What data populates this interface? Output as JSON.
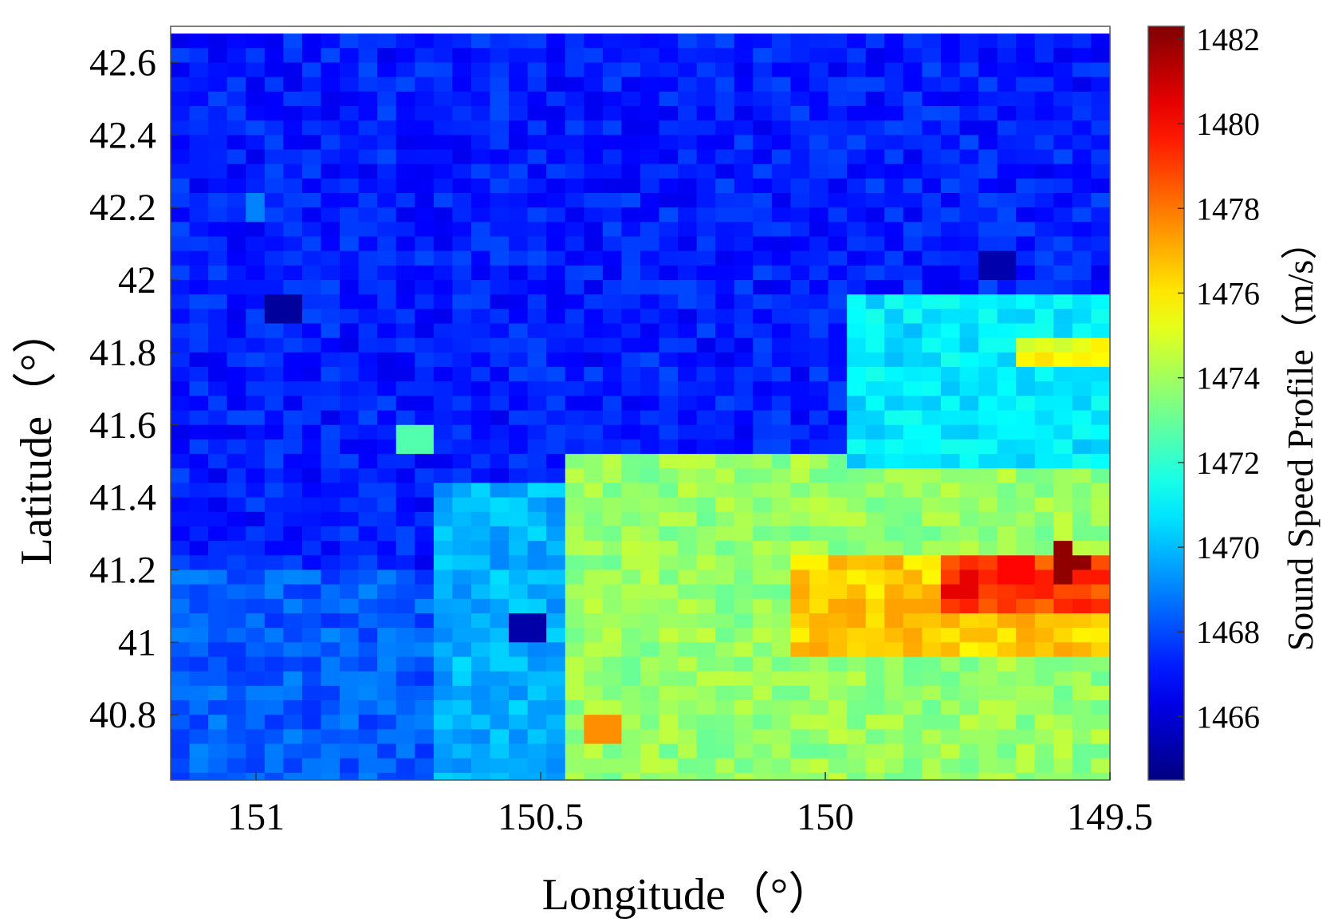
{
  "chart_data": {
    "type": "heatmap",
    "title": "",
    "xlabel": "Longitude（°）",
    "ylabel": "Latitude（°）",
    "colorbar_label": "Sound Speed Profile（m/s）",
    "x_axis_reversed": true,
    "xlim": [
      151.15,
      149.5
    ],
    "ylim": [
      40.62,
      42.7
    ],
    "clim": [
      1464.5,
      1482.3
    ],
    "x_ticks": [
      151,
      150.5,
      150,
      149.5
    ],
    "x_tick_labels": [
      "151",
      "150.5",
      "150",
      "149.5"
    ],
    "y_ticks": [
      40.8,
      41,
      41.2,
      41.4,
      41.6,
      41.8,
      42,
      42.2,
      42.4,
      42.6
    ],
    "y_tick_labels": [
      "40.8",
      "41",
      "41.2",
      "41.4",
      "41.6",
      "41.8",
      "42",
      "42.2",
      "42.4",
      "42.6"
    ],
    "colorbar_ticks": [
      1466,
      1468,
      1470,
      1472,
      1474,
      1476,
      1478,
      1480,
      1482
    ],
    "colorbar_tick_labels": [
      "1466",
      "1468",
      "1470",
      "1472",
      "1474",
      "1476",
      "1478",
      "1480",
      "1482"
    ],
    "colormap": "jet",
    "grid": {
      "rows": 52,
      "cols": 50,
      "lon_start": 151.15,
      "lon_step": -0.033,
      "lat_start": 42.68,
      "lat_step": -0.04,
      "cells_note": "Values are estimated from the colormap; each cell's center is given by lon_start + col*lon_step, lat_start + row*lat_step."
    },
    "regions": [
      {
        "lat_min": 41.6,
        "lat_max": 42.7,
        "lon_east": 149.5,
        "lon_west": 151.15,
        "value": 1467.2
      },
      {
        "lat_min": 40.62,
        "lat_max": 41.2,
        "lon_east": 150.7,
        "lon_west": 151.15,
        "value": 1468.3
      },
      {
        "lat_min": 40.62,
        "lat_max": 41.45,
        "lon_east": 150.45,
        "lon_west": 150.7,
        "value": 1469.8
      },
      {
        "lat_min": 40.62,
        "lat_max": 41.5,
        "lon_east": 149.5,
        "lon_west": 150.45,
        "value": 1473.8
      },
      {
        "lat_min": 40.95,
        "lat_max": 41.25,
        "lon_east": 149.5,
        "lon_west": 150.05,
        "value": 1476.5
      },
      {
        "lat_min": 41.1,
        "lat_max": 41.25,
        "lon_east": 149.5,
        "lon_west": 149.8,
        "value": 1479.0
      },
      {
        "lat_min": 41.5,
        "lat_max": 41.95,
        "lon_east": 149.5,
        "lon_west": 149.95,
        "value": 1470.8
      },
      {
        "lat_min": 41.75,
        "lat_max": 41.85,
        "lon_east": 149.5,
        "lon_west": 149.65,
        "value": 1475.5
      }
    ],
    "hotspots": [
      {
        "lon": 149.57,
        "lat": 41.22,
        "value": 1482.0
      },
      {
        "lon": 149.75,
        "lat": 41.15,
        "value": 1480.5
      },
      {
        "lon": 149.67,
        "lat": 41.21,
        "value": 1480.0
      },
      {
        "lon": 150.95,
        "lat": 41.92,
        "value": 1465.0
      },
      {
        "lon": 150.52,
        "lat": 41.04,
        "value": 1465.2
      },
      {
        "lon": 149.7,
        "lat": 42.03,
        "value": 1465.3
      },
      {
        "lon": 150.4,
        "lat": 40.76,
        "value": 1477.6
      },
      {
        "lon": 151.0,
        "lat": 42.2,
        "value": 1469.0
      },
      {
        "lon": 150.72,
        "lat": 41.57,
        "value": 1472.6
      }
    ]
  }
}
